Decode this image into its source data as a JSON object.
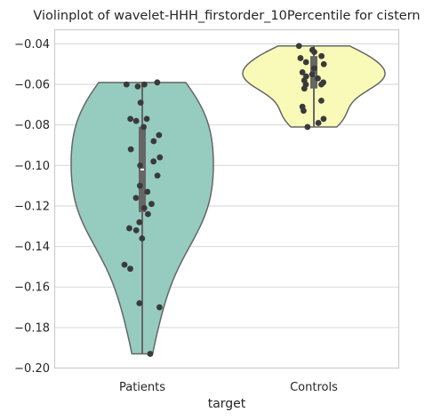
{
  "chart_data": {
    "type": "violin",
    "title": "Violinplot of wavelet-HHH_firstorder_10Percentile for cistern",
    "xlabel": "target",
    "ylabel": "",
    "categories": [
      "Patients",
      "Controls"
    ],
    "ylim": [
      -0.2,
      -0.033
    ],
    "yticks": [
      -0.04,
      -0.06,
      -0.08,
      -0.1,
      -0.12,
      -0.14,
      -0.16,
      -0.18,
      -0.2
    ],
    "ytick_labels": [
      "−0.04",
      "−0.06",
      "−0.08",
      "−0.10",
      "−0.12",
      "−0.14",
      "−0.16",
      "−0.18",
      "−0.20"
    ],
    "grid": true,
    "colors": {
      "Patients": "#96cbc0",
      "Controls": "#fafab8",
      "outline": "#666666",
      "points": "#3a3a3a",
      "grid": "#d9d9d9",
      "spine": "#cccccc"
    },
    "series": [
      {
        "name": "Patients",
        "box": {
          "q1": -0.123,
          "median": -0.102,
          "q3": -0.081,
          "whisker_low": -0.193,
          "whisker_high": -0.059
        },
        "points": [
          -0.059,
          -0.06,
          -0.06,
          -0.061,
          -0.069,
          -0.077,
          -0.077,
          -0.078,
          -0.081,
          -0.085,
          -0.088,
          -0.092,
          -0.096,
          -0.098,
          -0.1,
          -0.105,
          -0.11,
          -0.113,
          -0.116,
          -0.119,
          -0.121,
          -0.124,
          -0.128,
          -0.131,
          -0.132,
          -0.136,
          -0.149,
          -0.151,
          -0.168,
          -0.17,
          -0.193
        ]
      },
      {
        "name": "Controls",
        "box": {
          "q1": -0.062,
          "median": -0.055,
          "q3": -0.046,
          "whisker_low": -0.081,
          "whisker_high": -0.041
        },
        "points": [
          -0.041,
          -0.043,
          -0.044,
          -0.046,
          -0.047,
          -0.049,
          -0.05,
          -0.052,
          -0.054,
          -0.055,
          -0.056,
          -0.057,
          -0.058,
          -0.059,
          -0.06,
          -0.06,
          -0.062,
          -0.068,
          -0.071,
          -0.073,
          -0.077,
          -0.079,
          -0.081
        ]
      }
    ]
  }
}
